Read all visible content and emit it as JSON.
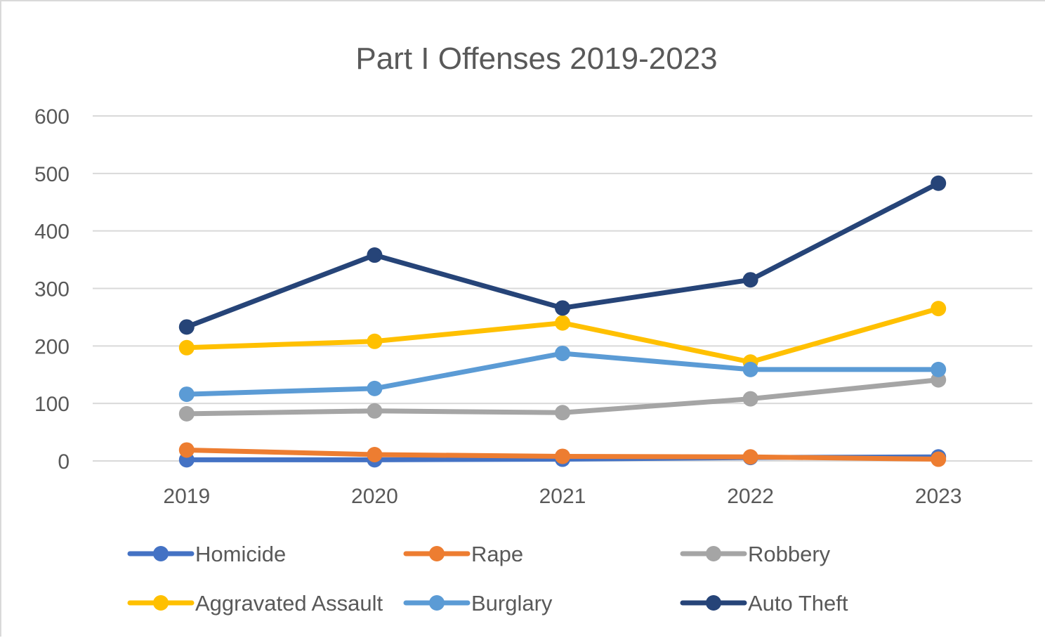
{
  "chart_data": {
    "type": "line",
    "title": "Part I Offenses 2019-2023",
    "xlabel": "",
    "ylabel": "",
    "categories": [
      "2019",
      "2020",
      "2021",
      "2022",
      "2023"
    ],
    "ylim": [
      0,
      600
    ],
    "yticks": [
      0,
      100,
      200,
      300,
      400,
      500,
      600
    ],
    "grid": true,
    "legend_position": "bottom",
    "series": [
      {
        "name": "Homicide",
        "color": "#4472c4",
        "values": [
          2,
          2,
          3,
          6,
          7
        ]
      },
      {
        "name": "Rape",
        "color": "#ed7d31",
        "values": [
          19,
          11,
          8,
          7,
          3
        ]
      },
      {
        "name": "Robbery",
        "color": "#a5a5a5",
        "values": [
          82,
          87,
          84,
          108,
          141
        ]
      },
      {
        "name": "Aggravated Assault",
        "color": "#ffc000",
        "values": [
          197,
          208,
          240,
          172,
          265
        ]
      },
      {
        "name": "Burglary",
        "color": "#5b9bd5",
        "values": [
          116,
          126,
          187,
          159,
          159
        ]
      },
      {
        "name": "Auto Theft",
        "color": "#264478",
        "values": [
          233,
          358,
          266,
          315,
          483
        ]
      }
    ]
  }
}
